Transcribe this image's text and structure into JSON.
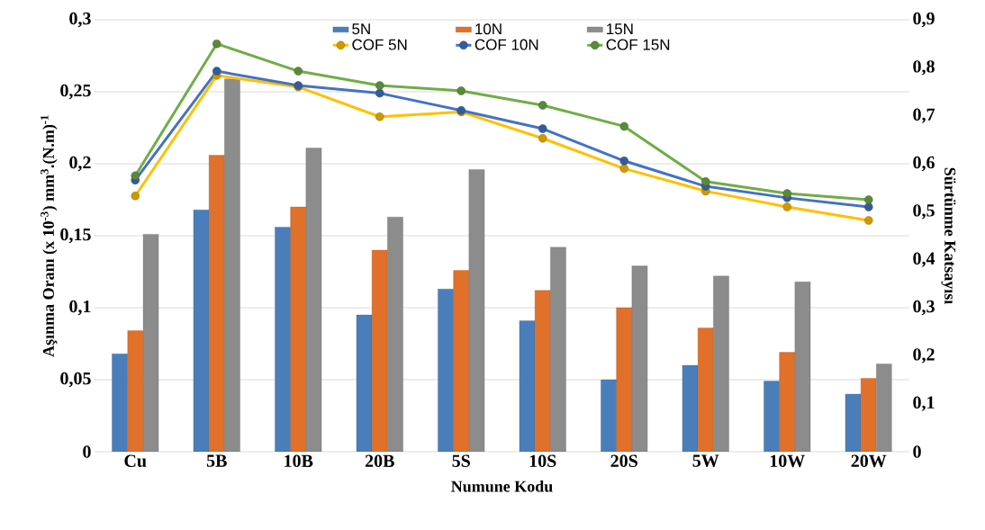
{
  "chart_data": {
    "type": "bar",
    "xlabel": "Numune Kodu",
    "ylabel": "Aşınma Oranı (x 10$^{-3}$) mm$^{3}$.(N.m)$^{-1}$",
    "y2label": "Sürtünme Katsayısı",
    "categories": [
      "Cu",
      "5B",
      "10B",
      "20B",
      "5S",
      "10S",
      "20S",
      "5W",
      "10W",
      "20W"
    ],
    "series": [
      {
        "name": "5N",
        "color": "#4a7ebb",
        "values": [
          0.068,
          0.168,
          0.156,
          0.095,
          0.113,
          0.091,
          0.05,
          0.06,
          0.049,
          0.04
        ]
      },
      {
        "name": "10N",
        "color": "#e0702a",
        "values": [
          0.084,
          0.206,
          0.17,
          0.14,
          0.126,
          0.112,
          0.1,
          0.086,
          0.069,
          0.051
        ]
      },
      {
        "name": "15N",
        "color": "#8c8c8c",
        "values": [
          0.151,
          0.259,
          0.211,
          0.163,
          0.196,
          0.142,
          0.129,
          0.122,
          0.118,
          0.061
        ]
      },
      {
        "name": "COF 5N",
        "type": "line",
        "axis": "y2",
        "color": "#ffc000",
        "values": [
          0.533,
          0.784,
          0.76,
          0.698,
          0.708,
          0.653,
          0.59,
          0.543,
          0.51,
          0.482
        ]
      },
      {
        "name": "COF 10N",
        "type": "line",
        "axis": "y2",
        "color": "#4472c4",
        "values": [
          0.566,
          0.793,
          0.763,
          0.747,
          0.711,
          0.673,
          0.606,
          0.553,
          0.529,
          0.51
        ]
      },
      {
        "name": "COF 15N",
        "type": "line",
        "axis": "y2",
        "color": "#70ad47",
        "values": [
          0.575,
          0.85,
          0.793,
          0.763,
          0.752,
          0.722,
          0.678,
          0.563,
          0.538,
          0.525
        ]
      }
    ],
    "ylim": [
      0,
      0.3
    ],
    "yticks": [
      0,
      {
        "value": 0.05,
        "label": "0,05"
      },
      {
        "value": 0.1,
        "label": "0,1"
      },
      {
        "value": 0.15,
        "label": "0,15"
      },
      {
        "value": 0.2,
        "label": "0,2"
      },
      {
        "value": 0.25,
        "label": "0,25"
      },
      {
        "value": 0.3,
        "label": "0,3"
      }
    ],
    "y2lim": [
      0,
      0.9
    ],
    "y2ticks": [
      0,
      {
        "value": 0.1,
        "label": "0,1"
      },
      {
        "value": 0.2,
        "label": "0,2"
      },
      {
        "value": 0.3,
        "label": "0,3"
      },
      {
        "value": 0.4,
        "label": "0,4"
      },
      {
        "value": 0.5,
        "label": "0,5"
      },
      {
        "value": 0.6,
        "label": "0,6"
      },
      {
        "value": 0.7,
        "label": "0,7"
      },
      {
        "value": 0.8,
        "label": "0,8"
      },
      {
        "value": 0.9,
        "label": "0,9"
      }
    ],
    "grid": "y",
    "legend": "top",
    "marker": "circle"
  }
}
